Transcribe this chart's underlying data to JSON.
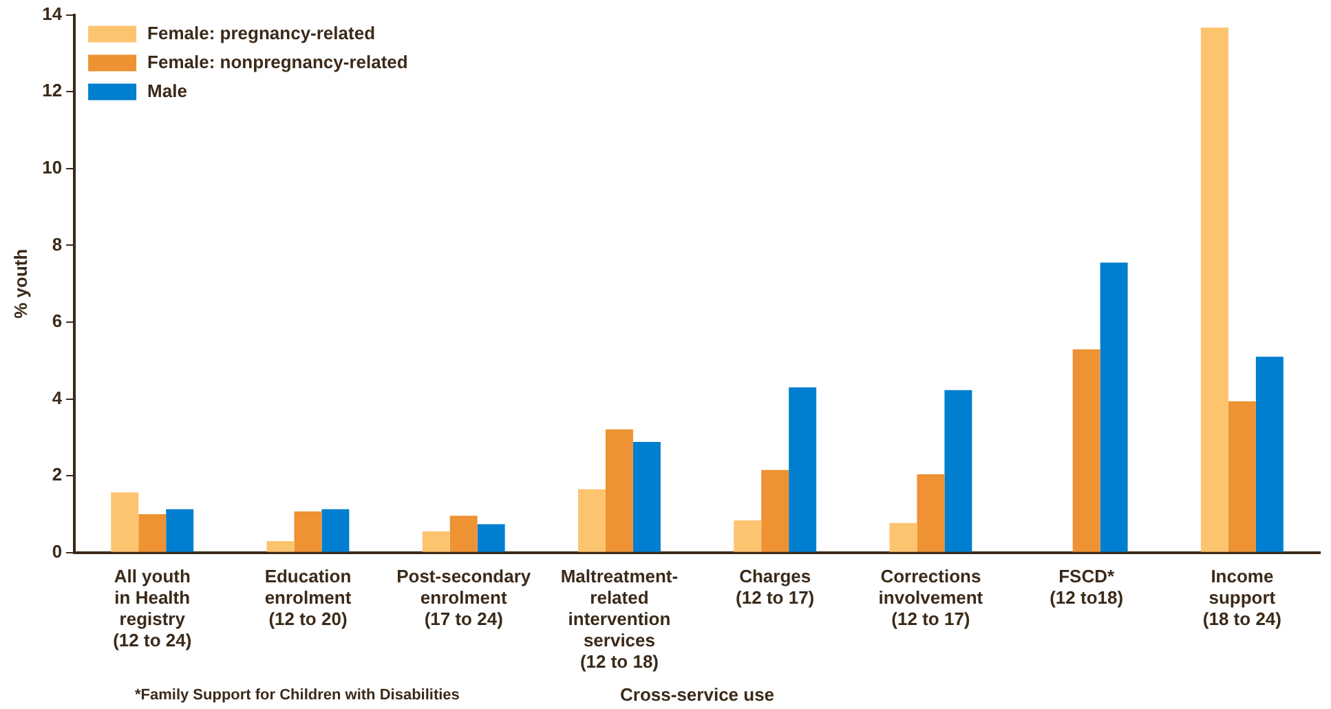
{
  "chart_data": {
    "type": "bar",
    "xlabel": "Cross-service use",
    "ylabel": "% youth",
    "categories": [
      "All youth\nin Health\nregistry\n(12 to 24)",
      "Education\nenrolment\n(12 to 20)",
      "Post-secondary\nenrolment\n(17 to 24)",
      "Maltreatment-\nrelated\nintervention\nservices\n(12 to 18)",
      "Charges\n(12 to 17)",
      "Corrections\ninvolvement\n(12 to 17)",
      "FSCD*\n(12 to18)",
      "Income\nsupport\n(18 to 24)"
    ],
    "series": [
      {
        "name": "Female: pregnancy-related",
        "color": "#fdc470",
        "values": [
          1.57,
          0.3,
          0.55,
          1.65,
          0.84,
          0.77,
          null,
          13.67
        ]
      },
      {
        "name": "Female: nonpregnancy-related",
        "color": "#ee9233",
        "values": [
          1.0,
          1.07,
          0.96,
          3.21,
          2.15,
          2.04,
          5.29,
          3.94
        ]
      },
      {
        "name": "Male",
        "color": "#007ecf",
        "values": [
          1.13,
          1.13,
          0.74,
          2.88,
          4.3,
          4.23,
          7.55,
          5.1
        ]
      }
    ],
    "ylim": [
      0,
      14
    ],
    "yticks": [
      0,
      2,
      4,
      6,
      8,
      10,
      12,
      14
    ],
    "grid": false,
    "legend": "top left",
    "annotations": [
      "*Family Support for Children with Disabilities"
    ]
  }
}
